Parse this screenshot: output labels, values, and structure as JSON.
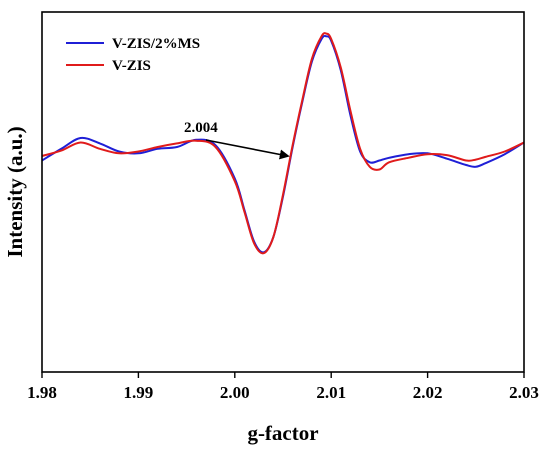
{
  "chart_data": {
    "type": "line",
    "xlabel": "g-factor",
    "ylabel": "Intensity (a.u.)",
    "xlim": [
      1.98,
      2.03
    ],
    "ylim": [
      -2.4,
      1.6
    ],
    "x_ticks": [
      "1.98",
      "1.99",
      "2.00",
      "2.01",
      "2.02",
      "2.03"
    ],
    "y_ticks_shown": false,
    "grid": false,
    "legend_position": "top-left",
    "annotation": {
      "text": "2.004",
      "arrow_to": [
        2.0055,
        0.0
      ]
    },
    "series": [
      {
        "name": "V-ZIS/2%MS",
        "color": "#1f1fd6",
        "x": [
          1.98,
          1.982,
          1.984,
          1.986,
          1.988,
          1.99,
          1.992,
          1.994,
          1.996,
          1.998,
          2.0,
          2.001,
          2.002,
          2.003,
          2.004,
          2.005,
          2.006,
          2.007,
          2.008,
          2.009,
          2.0095,
          2.01,
          2.011,
          2.012,
          2.013,
          2.014,
          2.015,
          2.016,
          2.018,
          2.02,
          2.022,
          2.024,
          2.025,
          2.026,
          2.028,
          2.03
        ],
        "values": [
          -0.05,
          0.08,
          0.2,
          0.14,
          0.05,
          0.03,
          0.08,
          0.1,
          0.18,
          0.12,
          -0.25,
          -0.6,
          -0.95,
          -1.07,
          -0.9,
          -0.45,
          0.1,
          0.6,
          1.05,
          1.3,
          1.33,
          1.28,
          0.95,
          0.45,
          0.05,
          -0.07,
          -0.05,
          -0.02,
          0.02,
          0.03,
          -0.03,
          -0.1,
          -0.12,
          -0.08,
          0.02,
          0.15
        ]
      },
      {
        "name": "V-ZIS",
        "color": "#e01b1b",
        "x": [
          1.98,
          1.982,
          1.984,
          1.986,
          1.988,
          1.99,
          1.992,
          1.994,
          1.996,
          1.998,
          2.0,
          2.001,
          2.002,
          2.003,
          2.004,
          2.005,
          2.006,
          2.007,
          2.008,
          2.009,
          2.0095,
          2.01,
          2.011,
          2.012,
          2.013,
          2.014,
          2.015,
          2.016,
          2.018,
          2.02,
          2.022,
          2.024,
          2.025,
          2.026,
          2.028,
          2.03
        ],
        "values": [
          0.0,
          0.06,
          0.15,
          0.08,
          0.03,
          0.05,
          0.1,
          0.14,
          0.17,
          0.1,
          -0.28,
          -0.62,
          -0.97,
          -1.08,
          -0.9,
          -0.43,
          0.12,
          0.62,
          1.08,
          1.33,
          1.36,
          1.3,
          0.98,
          0.5,
          0.08,
          -0.12,
          -0.15,
          -0.07,
          -0.02,
          0.02,
          0.01,
          -0.05,
          -0.04,
          -0.01,
          0.05,
          0.15
        ]
      }
    ]
  }
}
